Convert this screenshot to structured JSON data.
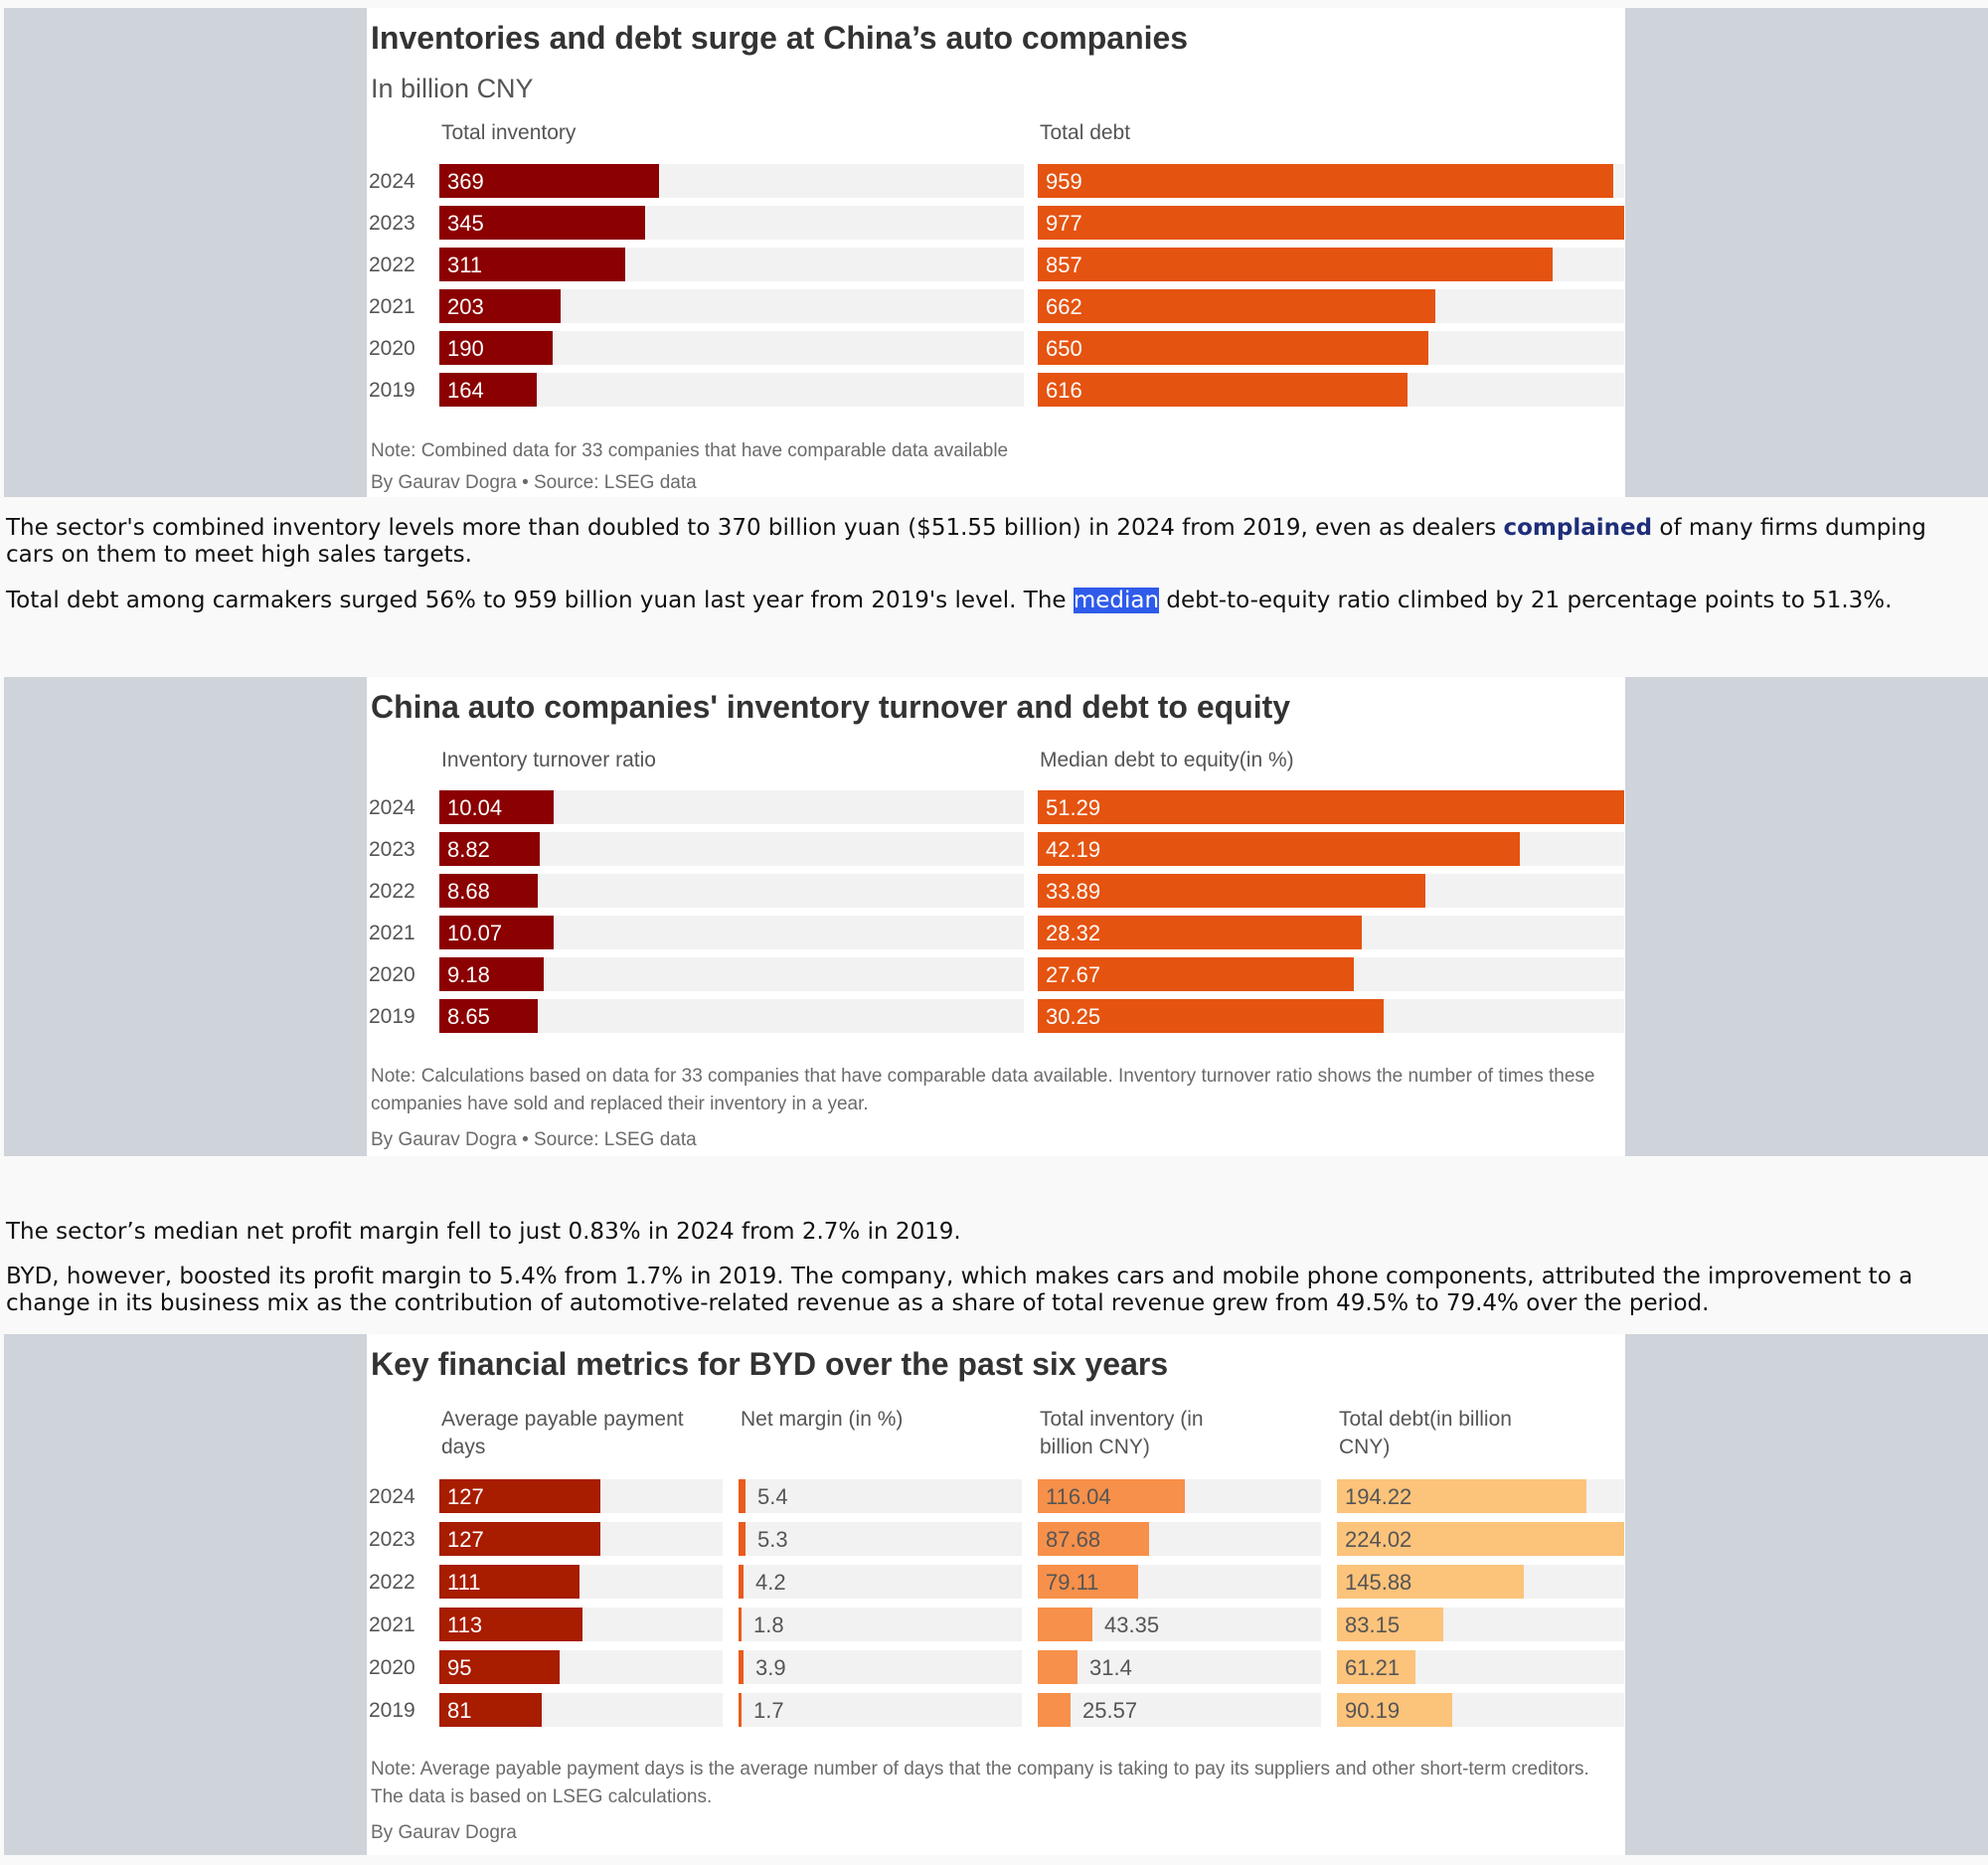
{
  "colors": {
    "bar_bg": "#f2f2f2",
    "dark_red": "#8b0000",
    "orange": "#e55310",
    "red": "#a81c00",
    "red_orange": "#ea5b1c",
    "light_orange": "#f7904a",
    "peach": "#fcc37b",
    "label_light": "#ffffff",
    "label_dark": "#555555"
  },
  "chart1": {
    "title": "Inventories and debt surge at China’s auto companies",
    "subtitle": "In billion CNY",
    "note": "Note: Combined data for 33 companies that have comparable data available",
    "byline": "By Gaurav Dogra • Source: LSEG data"
  },
  "chart2": {
    "title": "China auto companies' inventory turnover and debt to equity",
    "note": "Note: Calculations based on data for 33 companies that have comparable data available. Inventory turnover ratio shows the number of times these companies have sold and replaced their inventory in a year.",
    "byline": "By Gaurav Dogra • Source: LSEG data"
  },
  "chart3": {
    "title": "Key financial metrics for BYD over the past six years",
    "note": "Note: Average payable payment days is the average number of days that the company is taking to pay its suppliers and other short-term creditors. The data is based on LSEG calculations.",
    "byline": "By Gaurav Dogra"
  },
  "article": {
    "p1_before": "The sector's combined inventory levels more than doubled to 370 billion yuan ($51.55 billion) in 2024 from 2019, even as dealers ",
    "p1_link": "complained",
    "p1_after": " of many firms dumping cars on them to meet high sales targets.",
    "p2_before": "Total debt among carmakers surged 56% to 959 billion yuan last year from 2019's level. The ",
    "p2_highlight": "median",
    "p2_after": " debt-to-equity ratio climbed by 21 percentage points to 51.3%.",
    "p3": "The sector’s median net profit margin fell to just 0.83% in 2024 from 2.7% in 2019.",
    "p4": "BYD, however, boosted its profit margin to 5.4% from 1.7% in 2019. The company, which makes cars and mobile phone components, attributed the improvement to a change in its business mix as the contribution of automotive-related revenue as a share of total revenue grew from 49.5% to 79.4% over the period."
  },
  "chart_data": [
    {
      "type": "bar",
      "title": "Inventories and debt surge at China’s auto companies",
      "subtitle": "In billion CNY",
      "categories": [
        "2024",
        "2023",
        "2022",
        "2021",
        "2020",
        "2019"
      ],
      "series": [
        {
          "name": "Total inventory",
          "values": [
            369,
            345,
            311,
            203,
            190,
            164
          ],
          "labels": [
            "369",
            "345",
            "311",
            "203",
            "190",
            "164"
          ],
          "color": "#8b0000",
          "label_color": "#ffffff",
          "xlim": [
            0,
            980
          ]
        },
        {
          "name": "Total debt",
          "values": [
            959,
            977,
            857,
            662,
            650,
            616
          ],
          "labels": [
            "959",
            "977",
            "857",
            "662",
            "650",
            "616"
          ],
          "color": "#e55310",
          "label_color": "#ffffff",
          "xlim": [
            0,
            977
          ]
        }
      ]
    },
    {
      "type": "bar",
      "title": "China auto companies' inventory turnover and debt to equity",
      "categories": [
        "2024",
        "2023",
        "2022",
        "2021",
        "2020",
        "2019"
      ],
      "series": [
        {
          "name": "Inventory turnover ratio",
          "values": [
            10.04,
            8.82,
            8.68,
            10.07,
            9.18,
            8.65
          ],
          "labels": [
            "10.04",
            "8.82",
            "8.68",
            "10.07",
            "9.18",
            "8.65"
          ],
          "color": "#8b0000",
          "label_color": "#ffffff",
          "xlim": [
            0,
            51.3
          ]
        },
        {
          "name": "Median debt to equity(in %)",
          "values": [
            51.29,
            42.19,
            33.89,
            28.32,
            27.67,
            30.25
          ],
          "labels": [
            "51.29",
            "42.19",
            "33.89",
            "28.32",
            "27.67",
            "30.25"
          ],
          "color": "#e55310",
          "label_color": "#ffffff",
          "xlim": [
            0,
            51.29
          ]
        }
      ]
    },
    {
      "type": "bar",
      "title": "Key financial metrics for BYD over the past six years",
      "categories": [
        "2024",
        "2023",
        "2022",
        "2021",
        "2020",
        "2019"
      ],
      "series": [
        {
          "name": "Average payable payment days",
          "values": [
            127,
            127,
            111,
            113,
            95,
            81
          ],
          "labels": [
            "127",
            "127",
            "111",
            "113",
            "95",
            "81"
          ],
          "color": "#a81c00",
          "label_color": "#ffffff",
          "xlim": [
            0,
            224.02
          ]
        },
        {
          "name": "Net margin (in %)",
          "values": [
            5.4,
            5.3,
            4.2,
            1.8,
            3.9,
            1.7
          ],
          "labels": [
            "5.4",
            "5.3",
            "4.2",
            "1.8",
            "3.9",
            "1.7"
          ],
          "color": "#ea5b1c",
          "label_color": "#555555",
          "xlim": [
            0,
            224.02
          ]
        },
        {
          "name": "Total inventory (in billion CNY)",
          "values": [
            116.04,
            87.68,
            79.11,
            43.35,
            31.4,
            25.57
          ],
          "labels": [
            "116.04",
            "87.68",
            "79.11",
            "43.35",
            "31.4",
            "25.57"
          ],
          "color": "#f7904a",
          "label_color": "#555555",
          "xlim": [
            0,
            224.02
          ]
        },
        {
          "name": "Total debt(in billion CNY)",
          "values": [
            194.22,
            224.02,
            145.88,
            83.15,
            61.21,
            90.19
          ],
          "labels": [
            "194.22",
            "224.02",
            "145.88",
            "83.15",
            "61.21",
            "90.19"
          ],
          "color": "#fcc37b",
          "label_color": "#555555",
          "xlim": [
            0,
            224.02
          ]
        }
      ]
    }
  ]
}
